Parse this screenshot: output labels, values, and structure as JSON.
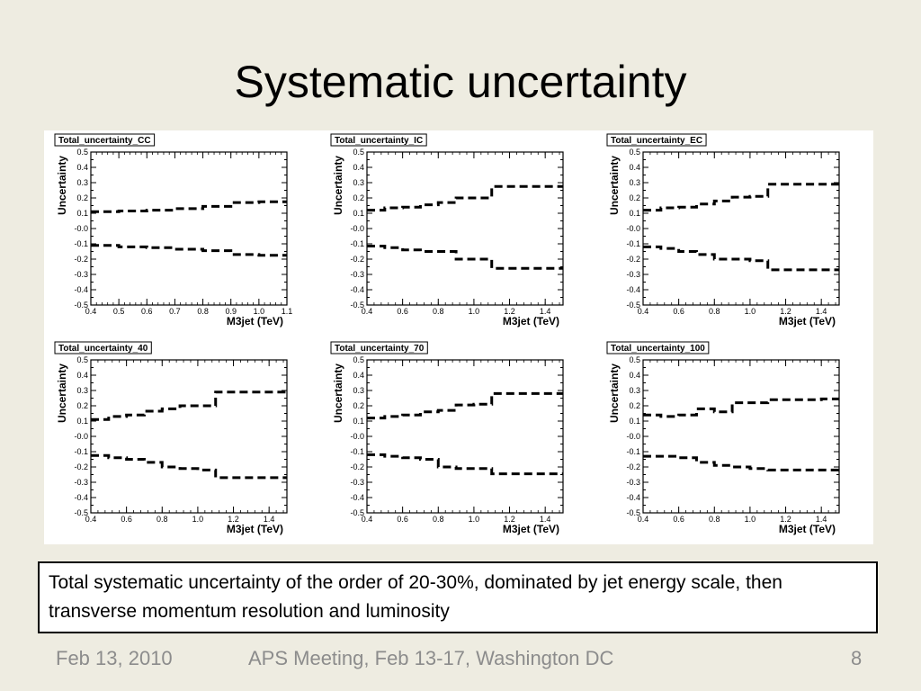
{
  "slide": {
    "title": "Systematic uncertainty",
    "caption": "Total systematic uncertainty of the order of 20-30%, dominated by jet energy scale, then transverse momentum resolution and luminosity",
    "footer": {
      "date": "Feb 13, 2010",
      "event": "APS Meeting, Feb 13-17, Washington DC",
      "page": "8"
    }
  },
  "chart_data": [
    {
      "type": "line",
      "title": "Total_uncertainty_CC",
      "xlabel": "M3jet (TeV)",
      "ylabel": "Uncertainty",
      "xlim": [
        0.4,
        1.1
      ],
      "ylim": [
        -0.5,
        0.5
      ],
      "xticks": [
        "0.4",
        "0.5",
        "0.6",
        "0.7",
        "0.8",
        "0.9",
        "1.0",
        "1.1"
      ],
      "yticks": [
        "-0.5",
        "-0.4",
        "-0.3",
        "-0.2",
        "-0.1",
        "-0.0",
        "0.1",
        "0.2",
        "0.3",
        "0.4",
        "0.5"
      ],
      "bin_edges": [
        0.4,
        0.5,
        0.6,
        0.7,
        0.8,
        0.9,
        1.0,
        1.1
      ],
      "series": [
        {
          "values": [
            0.11,
            0.115,
            0.12,
            0.13,
            0.145,
            0.17,
            0.175
          ]
        },
        {
          "values": [
            -0.11,
            -0.12,
            -0.125,
            -0.135,
            -0.145,
            -0.17,
            -0.175
          ]
        }
      ]
    },
    {
      "type": "line",
      "title": "Total_uncertainty_IC",
      "xlabel": "M3jet (TeV)",
      "ylabel": "Uncertainty",
      "xlim": [
        0.4,
        1.5
      ],
      "ylim": [
        -0.5,
        0.5
      ],
      "xticks": [
        "0.4",
        "0.6",
        "0.8",
        "1.0",
        "1.2",
        "1.4"
      ],
      "yticks": [
        "-0.5",
        "-0.4",
        "-0.3",
        "-0.2",
        "-0.1",
        "-0.0",
        "0.1",
        "0.2",
        "0.3",
        "0.4",
        "0.5"
      ],
      "bin_edges": [
        0.4,
        0.5,
        0.6,
        0.7,
        0.8,
        0.9,
        1.0,
        1.1,
        1.2,
        1.3,
        1.4,
        1.5
      ],
      "series": [
        {
          "values": [
            0.12,
            0.135,
            0.14,
            0.155,
            0.17,
            0.2,
            0.2,
            0.275,
            0.275,
            0.275,
            0.275
          ]
        },
        {
          "values": [
            -0.115,
            -0.125,
            -0.14,
            -0.15,
            -0.15,
            -0.2,
            -0.2,
            -0.26,
            -0.26,
            -0.26,
            -0.26
          ]
        }
      ]
    },
    {
      "type": "line",
      "title": "Total_uncertainty_EC",
      "xlabel": "M3jet (TeV)",
      "ylabel": "Uncertainty",
      "xlim": [
        0.4,
        1.5
      ],
      "ylim": [
        -0.5,
        0.5
      ],
      "xticks": [
        "0.4",
        "0.6",
        "0.8",
        "1.0",
        "1.2",
        "1.4"
      ],
      "yticks": [
        "-0.5",
        "-0.4",
        "-0.3",
        "-0.2",
        "-0.1",
        "-0.0",
        "0.1",
        "0.2",
        "0.3",
        "0.4",
        "0.5"
      ],
      "bin_edges": [
        0.4,
        0.5,
        0.6,
        0.7,
        0.8,
        0.9,
        1.0,
        1.1,
        1.2,
        1.3,
        1.4,
        1.5
      ],
      "series": [
        {
          "values": [
            0.12,
            0.135,
            0.14,
            0.16,
            0.18,
            0.205,
            0.21,
            0.29,
            0.29,
            0.29,
            0.29
          ]
        },
        {
          "values": [
            -0.12,
            -0.13,
            -0.15,
            -0.17,
            -0.2,
            -0.2,
            -0.21,
            -0.27,
            -0.27,
            -0.27,
            -0.27
          ]
        }
      ]
    },
    {
      "type": "line",
      "title": "Total_uncertainty_40",
      "xlabel": "M3jet (TeV)",
      "ylabel": "Uncertainty",
      "xlim": [
        0.4,
        1.5
      ],
      "ylim": [
        -0.5,
        0.5
      ],
      "xticks": [
        "0.4",
        "0.6",
        "0.8",
        "1.0",
        "1.2",
        "1.4"
      ],
      "yticks": [
        "-0.5",
        "-0.4",
        "-0.3",
        "-0.2",
        "-0.1",
        "-0.0",
        "0.1",
        "0.2",
        "0.3",
        "0.4",
        "0.5"
      ],
      "bin_edges": [
        0.4,
        0.5,
        0.6,
        0.7,
        0.8,
        0.9,
        1.0,
        1.1,
        1.2,
        1.3,
        1.4,
        1.5
      ],
      "series": [
        {
          "values": [
            0.11,
            0.13,
            0.14,
            0.165,
            0.18,
            0.2,
            0.2,
            0.29,
            0.29,
            0.29,
            0.29
          ]
        },
        {
          "values": [
            -0.125,
            -0.14,
            -0.15,
            -0.17,
            -0.2,
            -0.21,
            -0.22,
            -0.27,
            -0.27,
            -0.27,
            -0.27
          ]
        }
      ]
    },
    {
      "type": "line",
      "title": "Total_uncertainty_70",
      "xlabel": "M3jet (TeV)",
      "ylabel": "Uncertainty",
      "xlim": [
        0.4,
        1.5
      ],
      "ylim": [
        -0.5,
        0.5
      ],
      "xticks": [
        "0.4",
        "0.6",
        "0.8",
        "1.0",
        "1.2",
        "1.4"
      ],
      "yticks": [
        "-0.5",
        "-0.4",
        "-0.3",
        "-0.2",
        "-0.1",
        "-0.0",
        "0.1",
        "0.2",
        "0.3",
        "0.4",
        "0.5"
      ],
      "bin_edges": [
        0.4,
        0.5,
        0.6,
        0.7,
        0.8,
        0.9,
        1.0,
        1.1,
        1.2,
        1.3,
        1.4,
        1.5
      ],
      "series": [
        {
          "values": [
            0.12,
            0.13,
            0.14,
            0.16,
            0.17,
            0.205,
            0.21,
            0.28,
            0.28,
            0.28,
            0.28
          ]
        },
        {
          "values": [
            -0.12,
            -0.13,
            -0.14,
            -0.15,
            -0.2,
            -0.21,
            -0.21,
            -0.245,
            -0.245,
            -0.245,
            -0.245
          ]
        }
      ]
    },
    {
      "type": "line",
      "title": "Total_uncertainty_100",
      "xlabel": "M3jet (TeV)",
      "ylabel": "Uncertainty",
      "xlim": [
        0.4,
        1.5
      ],
      "ylim": [
        -0.5,
        0.5
      ],
      "xticks": [
        "0.4",
        "0.6",
        "0.8",
        "1.0",
        "1.2",
        "1.4"
      ],
      "yticks": [
        "-0.5",
        "-0.4",
        "-0.3",
        "-0.2",
        "-0.1",
        "-0.0",
        "0.1",
        "0.2",
        "0.3",
        "0.4",
        "0.5"
      ],
      "bin_edges": [
        0.4,
        0.5,
        0.6,
        0.7,
        0.8,
        0.9,
        1.0,
        1.1,
        1.2,
        1.3,
        1.4,
        1.5
      ],
      "series": [
        {
          "values": [
            0.14,
            0.13,
            0.14,
            0.18,
            0.16,
            0.22,
            0.22,
            0.24,
            0.24,
            0.24,
            0.245
          ]
        },
        {
          "values": [
            -0.13,
            -0.13,
            -0.14,
            -0.17,
            -0.19,
            -0.2,
            -0.21,
            -0.22,
            -0.22,
            -0.22,
            -0.22
          ]
        }
      ]
    }
  ]
}
